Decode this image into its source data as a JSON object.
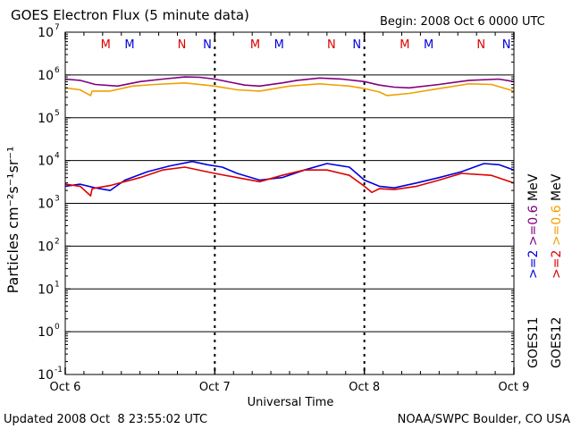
{
  "chart_data": {
    "type": "line",
    "title": "GOES Electron Flux (5 minute data)",
    "begin_label": "Begin: 2008 Oct 6 0000 UTC",
    "xlabel": "Universal Time",
    "ylabel": "Particles cm⁻²s⁻¹sr⁻¹",
    "yscale": "log",
    "ylim_exponents": [
      -1,
      7
    ],
    "y_ticks": [
      {
        "base": "10",
        "exp": "7",
        "value_exp": 7
      },
      {
        "base": "10",
        "exp": "6",
        "value_exp": 6
      },
      {
        "base": "10",
        "exp": "5",
        "value_exp": 5
      },
      {
        "base": "10",
        "exp": "4",
        "value_exp": 4
      },
      {
        "base": "10",
        "exp": "3",
        "value_exp": 3
      },
      {
        "base": "10",
        "exp": "2",
        "value_exp": 2
      },
      {
        "base": "10",
        "exp": "1",
        "value_exp": 1
      },
      {
        "base": "10",
        "exp": "0",
        "value_exp": 0
      },
      {
        "base": "10",
        "exp": "-1",
        "value_exp": -1
      }
    ],
    "x_ticks": [
      "Oct 6",
      "Oct 7",
      "Oct 8",
      "Oct 9"
    ],
    "x_range_days": [
      0,
      3
    ],
    "grid": "horizontal lines at each decade",
    "threshold_exponent": 3,
    "mn_markers": [
      {
        "label": "M",
        "day": 0.27,
        "color": "#dd0000"
      },
      {
        "label": "M",
        "day": 0.43,
        "color": "#0000dd"
      },
      {
        "label": "N",
        "day": 0.78,
        "color": "#dd0000"
      },
      {
        "label": "N",
        "day": 0.95,
        "color": "#0000dd"
      },
      {
        "label": "M",
        "day": 1.27,
        "color": "#dd0000"
      },
      {
        "label": "M",
        "day": 1.43,
        "color": "#0000dd"
      },
      {
        "label": "N",
        "day": 1.78,
        "color": "#dd0000"
      },
      {
        "label": "N",
        "day": 1.95,
        "color": "#0000dd"
      },
      {
        "label": "M",
        "day": 2.27,
        "color": "#dd0000"
      },
      {
        "label": "M",
        "day": 2.43,
        "color": "#0000dd"
      },
      {
        "label": "N",
        "day": 2.78,
        "color": "#dd0000"
      },
      {
        "label": "N",
        "day": 2.95,
        "color": "#0000dd"
      }
    ],
    "legend_rows": [
      {
        "satellite": "GOES11",
        "parts": [
          {
            "text": ">=2",
            "color": "#0000dd"
          },
          {
            "text": " ",
            "color": "#000000"
          },
          {
            "text": ">=0.6",
            "color": "#800080"
          },
          {
            "text": " MeV",
            "color": "#000000"
          }
        ]
      },
      {
        "satellite": "GOES12",
        "parts": [
          {
            "text": ">=2",
            "color": "#dd0000"
          },
          {
            "text": " ",
            "color": "#000000"
          },
          {
            "text": ">=0.6",
            "color": "#f0a000"
          },
          {
            "text": " MeV",
            "color": "#000000"
          }
        ]
      }
    ],
    "series": [
      {
        "color": "#800080",
        "x": [
          0,
          0.1,
          0.2,
          0.35,
          0.5,
          0.65,
          0.8,
          0.9,
          1.0,
          1.1,
          1.2,
          1.3,
          1.45,
          1.55,
          1.7,
          1.85,
          2.0,
          2.1,
          2.2,
          2.3,
          2.5,
          2.7,
          2.9,
          3.0
        ],
        "y": [
          800000,
          750000,
          600000,
          550000,
          700000,
          800000,
          900000,
          880000,
          800000,
          680000,
          580000,
          550000,
          650000,
          750000,
          850000,
          800000,
          700000,
          580000,
          520000,
          500000,
          600000,
          750000,
          800000,
          700000
        ]
      },
      {
        "color": "#f0a000",
        "x": [
          0,
          0.1,
          0.17,
          0.18,
          0.3,
          0.45,
          0.6,
          0.8,
          1.0,
          1.15,
          1.3,
          1.5,
          1.7,
          1.9,
          2.0,
          2.1,
          2.15,
          2.3,
          2.5,
          2.7,
          2.85,
          3.0
        ],
        "y": [
          500000,
          450000,
          330000,
          420000,
          420000,
          550000,
          600000,
          650000,
          550000,
          450000,
          420000,
          550000,
          620000,
          550000,
          480000,
          400000,
          330000,
          370000,
          480000,
          620000,
          600000,
          420000
        ]
      },
      {
        "color": "#0000dd",
        "x": [
          0,
          0.1,
          0.2,
          0.3,
          0.4,
          0.55,
          0.7,
          0.85,
          0.95,
          1.05,
          1.15,
          1.3,
          1.45,
          1.6,
          1.75,
          1.9,
          2.0,
          2.1,
          2.2,
          2.35,
          2.5,
          2.65,
          2.8,
          2.9,
          3.0
        ],
        "y": [
          2500,
          2800,
          2300,
          2000,
          3500,
          5500,
          7500,
          9500,
          8000,
          7000,
          5000,
          3500,
          4000,
          6000,
          8500,
          7000,
          3500,
          2500,
          2300,
          3000,
          4000,
          5500,
          8500,
          8000,
          6000
        ]
      },
      {
        "color": "#dd0000",
        "x": [
          0,
          0.1,
          0.17,
          0.18,
          0.3,
          0.5,
          0.65,
          0.8,
          1.0,
          1.15,
          1.3,
          1.45,
          1.6,
          1.75,
          1.9,
          2.0,
          2.05,
          2.1,
          2.2,
          2.35,
          2.5,
          2.65,
          2.85,
          3.0
        ],
        "y": [
          2800,
          2500,
          1500,
          2200,
          2600,
          4000,
          6000,
          7000,
          5000,
          4000,
          3200,
          4500,
          6000,
          6000,
          4500,
          2500,
          1800,
          2200,
          2100,
          2500,
          3500,
          5000,
          4500,
          3000
        ]
      }
    ]
  },
  "footer": {
    "updated": "Updated 2008 Oct  8 23:55:02 UTC",
    "credit": "NOAA/SWPC Boulder, CO USA"
  }
}
